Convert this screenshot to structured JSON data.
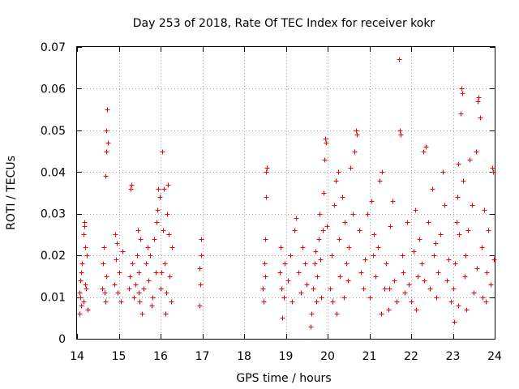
{
  "chart_data": {
    "type": "scatter",
    "title": "Day 253 of 2018, Rate Of TEC Index for receiver kokr",
    "xlabel": "GPS time / hours",
    "ylabel": "ROTI / TECUs",
    "xlim": [
      14,
      24
    ],
    "ylim": [
      0,
      0.07
    ],
    "xticks": [
      "14",
      "15",
      "16",
      "17",
      "18",
      "19",
      "20",
      "21",
      "22",
      "23",
      "24"
    ],
    "yticks": [
      "0",
      "0.01",
      "0.02",
      "0.03",
      "0.04",
      "0.05",
      "0.06",
      "0.07"
    ],
    "grid": true,
    "marker": "+",
    "marker_color": "#ff0000",
    "series": [
      {
        "name": "ROTI",
        "points": [
          [
            14.05,
            0.011
          ],
          [
            14.08,
            0.014
          ],
          [
            14.1,
            0.008
          ],
          [
            14.12,
            0.018
          ],
          [
            14.15,
            0.025
          ],
          [
            14.18,
            0.028
          ],
          [
            14.2,
            0.022
          ],
          [
            14.22,
            0.012
          ],
          [
            14.25,
            0.007
          ],
          [
            14.05,
            0.006
          ],
          [
            14.1,
            0.016
          ],
          [
            14.15,
            0.009
          ],
          [
            14.2,
            0.013
          ],
          [
            14.23,
            0.02
          ],
          [
            14.07,
            0.01
          ],
          [
            14.17,
            0.027
          ],
          [
            14.6,
            0.012
          ],
          [
            14.63,
            0.018
          ],
          [
            14.65,
            0.022
          ],
          [
            14.67,
            0.009
          ],
          [
            14.68,
            0.039
          ],
          [
            14.7,
            0.045
          ],
          [
            14.7,
            0.05
          ],
          [
            14.72,
            0.055
          ],
          [
            14.74,
            0.047
          ],
          [
            14.69,
            0.015
          ],
          [
            14.66,
            0.011
          ],
          [
            14.9,
            0.013
          ],
          [
            14.93,
            0.019
          ],
          [
            14.95,
            0.023
          ],
          [
            14.97,
            0.011
          ],
          [
            15.0,
            0.016
          ],
          [
            15.05,
            0.009
          ],
          [
            15.08,
            0.021
          ],
          [
            14.92,
            0.025
          ],
          [
            15.25,
            0.012
          ],
          [
            15.28,
            0.036
          ],
          [
            15.3,
            0.037
          ],
          [
            15.32,
            0.018
          ],
          [
            15.35,
            0.01
          ],
          [
            15.27,
            0.015
          ],
          [
            15.4,
            0.013
          ],
          [
            15.43,
            0.02
          ],
          [
            15.45,
            0.026
          ],
          [
            15.48,
            0.016
          ],
          [
            15.5,
            0.009
          ],
          [
            15.52,
            0.024
          ],
          [
            15.55,
            0.006
          ],
          [
            15.47,
            0.011
          ],
          [
            15.6,
            0.012
          ],
          [
            15.65,
            0.018
          ],
          [
            15.7,
            0.014
          ],
          [
            15.75,
            0.02
          ],
          [
            15.8,
            0.01
          ],
          [
            15.85,
            0.024
          ],
          [
            15.9,
            0.028
          ],
          [
            15.92,
            0.031
          ],
          [
            15.95,
            0.036
          ],
          [
            15.98,
            0.034
          ],
          [
            15.88,
            0.016
          ],
          [
            15.78,
            0.008
          ],
          [
            15.68,
            0.022
          ],
          [
            16.0,
            0.012
          ],
          [
            16.03,
            0.045
          ],
          [
            16.05,
            0.026
          ],
          [
            16.08,
            0.036
          ],
          [
            16.1,
            0.018
          ],
          [
            16.12,
            0.006
          ],
          [
            16.15,
            0.03
          ],
          [
            16.18,
            0.037
          ],
          [
            16.2,
            0.025
          ],
          [
            16.22,
            0.015
          ],
          [
            16.25,
            0.009
          ],
          [
            16.28,
            0.022
          ],
          [
            16.02,
            0.016
          ],
          [
            16.14,
            0.011
          ],
          [
            16.93,
            0.008
          ],
          [
            16.95,
            0.013
          ],
          [
            16.97,
            0.02
          ],
          [
            16.98,
            0.024
          ],
          [
            16.94,
            0.017
          ],
          [
            18.45,
            0.012
          ],
          [
            18.48,
            0.018
          ],
          [
            18.5,
            0.024
          ],
          [
            18.52,
            0.034
          ],
          [
            18.53,
            0.04
          ],
          [
            18.55,
            0.041
          ],
          [
            18.47,
            0.009
          ],
          [
            18.51,
            0.015
          ],
          [
            18.85,
            0.016
          ],
          [
            18.88,
            0.022
          ],
          [
            18.9,
            0.012
          ],
          [
            18.92,
            0.005
          ],
          [
            18.95,
            0.01
          ],
          [
            18.98,
            0.018
          ],
          [
            19.05,
            0.014
          ],
          [
            19.1,
            0.02
          ],
          [
            19.15,
            0.009
          ],
          [
            19.2,
            0.026
          ],
          [
            19.25,
            0.029
          ],
          [
            19.3,
            0.016
          ],
          [
            19.35,
            0.011
          ],
          [
            19.4,
            0.022
          ],
          [
            19.45,
            0.018
          ],
          [
            19.5,
            0.013
          ],
          [
            19.6,
            0.003
          ],
          [
            19.62,
            0.006
          ],
          [
            19.65,
            0.012
          ],
          [
            19.68,
            0.018
          ],
          [
            19.7,
            0.021
          ],
          [
            19.72,
            0.009
          ],
          [
            19.75,
            0.015
          ],
          [
            19.78,
            0.024
          ],
          [
            19.8,
            0.03
          ],
          [
            19.83,
            0.019
          ],
          [
            19.85,
            0.01
          ],
          [
            19.88,
            0.026
          ],
          [
            19.9,
            0.035
          ],
          [
            19.92,
            0.043
          ],
          [
            19.95,
            0.048
          ],
          [
            19.97,
            0.047
          ],
          [
            19.99,
            0.027
          ],
          [
            20.05,
            0.012
          ],
          [
            20.1,
            0.02
          ],
          [
            20.15,
            0.032
          ],
          [
            20.2,
            0.038
          ],
          [
            20.25,
            0.04
          ],
          [
            20.28,
            0.024
          ],
          [
            20.3,
            0.015
          ],
          [
            20.35,
            0.034
          ],
          [
            20.4,
            0.028
          ],
          [
            20.45,
            0.018
          ],
          [
            20.5,
            0.022
          ],
          [
            20.55,
            0.041
          ],
          [
            20.6,
            0.03
          ],
          [
            20.65,
            0.045
          ],
          [
            20.68,
            0.05
          ],
          [
            20.7,
            0.049
          ],
          [
            20.75,
            0.026
          ],
          [
            20.8,
            0.016
          ],
          [
            20.85,
            0.012
          ],
          [
            20.9,
            0.019
          ],
          [
            20.95,
            0.03
          ],
          [
            20.12,
            0.009
          ],
          [
            20.22,
            0.006
          ],
          [
            20.38,
            0.01
          ],
          [
            20.48,
            0.014
          ],
          [
            21.0,
            0.01
          ],
          [
            21.05,
            0.033
          ],
          [
            21.1,
            0.025
          ],
          [
            21.15,
            0.015
          ],
          [
            21.2,
            0.022
          ],
          [
            21.25,
            0.038
          ],
          [
            21.3,
            0.04
          ],
          [
            21.35,
            0.012
          ],
          [
            21.4,
            0.018
          ],
          [
            21.45,
            0.007
          ],
          [
            21.5,
            0.027
          ],
          [
            21.55,
            0.033
          ],
          [
            21.6,
            0.014
          ],
          [
            21.65,
            0.009
          ],
          [
            21.7,
            0.067
          ],
          [
            21.72,
            0.05
          ],
          [
            21.74,
            0.049
          ],
          [
            21.78,
            0.02
          ],
          [
            21.8,
            0.016
          ],
          [
            21.85,
            0.011
          ],
          [
            21.9,
            0.028
          ],
          [
            21.95,
            0.013
          ],
          [
            21.08,
            0.02
          ],
          [
            21.28,
            0.006
          ],
          [
            21.48,
            0.012
          ],
          [
            22.0,
            0.009
          ],
          [
            22.05,
            0.021
          ],
          [
            22.1,
            0.031
          ],
          [
            22.15,
            0.015
          ],
          [
            22.2,
            0.024
          ],
          [
            22.25,
            0.018
          ],
          [
            22.3,
            0.045
          ],
          [
            22.35,
            0.046
          ],
          [
            22.4,
            0.028
          ],
          [
            22.45,
            0.012
          ],
          [
            22.5,
            0.036
          ],
          [
            22.55,
            0.02
          ],
          [
            22.6,
            0.01
          ],
          [
            22.65,
            0.016
          ],
          [
            22.7,
            0.025
          ],
          [
            22.75,
            0.04
          ],
          [
            22.8,
            0.032
          ],
          [
            22.85,
            0.014
          ],
          [
            22.9,
            0.019
          ],
          [
            22.95,
            0.009
          ],
          [
            22.12,
            0.007
          ],
          [
            22.32,
            0.014
          ],
          [
            22.58,
            0.023
          ],
          [
            23.0,
            0.012
          ],
          [
            23.03,
            0.004
          ],
          [
            23.05,
            0.018
          ],
          [
            23.08,
            0.028
          ],
          [
            23.1,
            0.034
          ],
          [
            23.13,
            0.042
          ],
          [
            23.15,
            0.025
          ],
          [
            23.18,
            0.054
          ],
          [
            23.2,
            0.06
          ],
          [
            23.22,
            0.059
          ],
          [
            23.25,
            0.038
          ],
          [
            23.28,
            0.015
          ],
          [
            23.3,
            0.02
          ],
          [
            23.35,
            0.026
          ],
          [
            23.4,
            0.043
          ],
          [
            23.45,
            0.032
          ],
          [
            23.5,
            0.011
          ],
          [
            23.55,
            0.045
          ],
          [
            23.6,
            0.057
          ],
          [
            23.62,
            0.058
          ],
          [
            23.65,
            0.053
          ],
          [
            23.68,
            0.022
          ],
          [
            23.7,
            0.01
          ],
          [
            23.75,
            0.031
          ],
          [
            23.8,
            0.016
          ],
          [
            23.85,
            0.026
          ],
          [
            23.9,
            0.013
          ],
          [
            23.95,
            0.041
          ],
          [
            23.97,
            0.04
          ],
          [
            23.99,
            0.019
          ],
          [
            23.12,
            0.008
          ],
          [
            23.32,
            0.007
          ],
          [
            23.58,
            0.017
          ],
          [
            23.78,
            0.009
          ]
        ]
      }
    ]
  }
}
